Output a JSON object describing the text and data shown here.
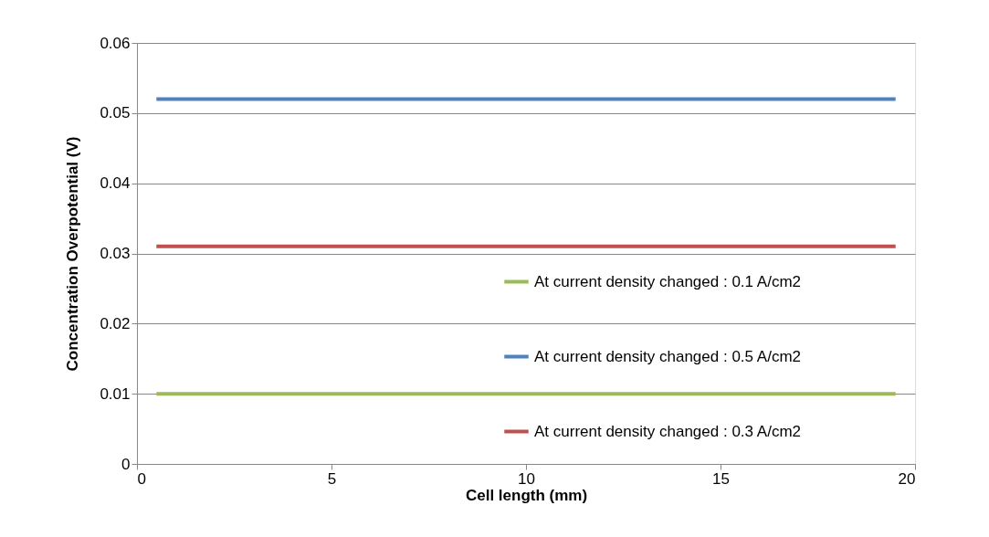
{
  "chart_data": {
    "type": "line",
    "xlabel": "Cell length (mm)",
    "ylabel": "Concentration Overpotential (V)",
    "x": [
      0.5,
      19.5
    ],
    "series": [
      {
        "name": "At current density changed : 0.1 A/cm2",
        "color": "#9bbb59",
        "values": [
          0.01,
          0.01
        ]
      },
      {
        "name": "At current density changed : 0.5 A/cm2",
        "color": "#4f81bd",
        "values": [
          0.052,
          0.052
        ]
      },
      {
        "name": "At current density changed : 0.3 A/cm2",
        "color": "#c0504d",
        "values": [
          0.031,
          0.031
        ]
      }
    ],
    "xlim": [
      0,
      20
    ],
    "xticks": [
      0,
      5,
      10,
      15,
      20
    ],
    "ylim": [
      0,
      0.06
    ],
    "yticks": [
      0,
      0.01,
      0.02,
      0.03,
      0.04,
      0.05,
      0.06
    ],
    "grid": "y",
    "legend": "bottom right",
    "marker": "none",
    "line_style": "solid"
  }
}
